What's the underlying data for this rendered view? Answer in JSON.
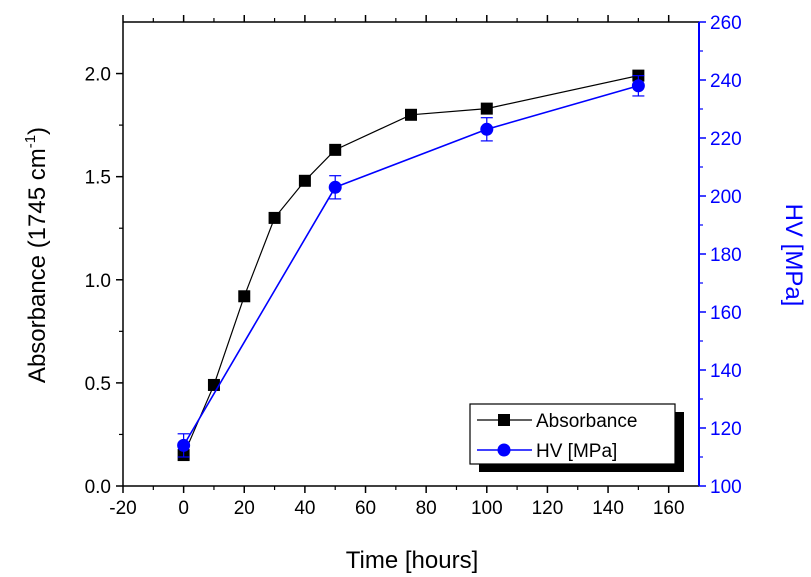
{
  "chart_data": {
    "type": "line",
    "title": "",
    "xlabel": "Time [hours]",
    "ylabel": "Absorbance (1745 cm",
    "ylabel_sup": "-1",
    "ylabel_close": ")",
    "y2label": "HV [MPa]",
    "xlim": [
      -20,
      170
    ],
    "ylim": [
      0,
      2.25
    ],
    "y2lim": [
      100,
      260
    ],
    "xticks": [
      -20,
      0,
      20,
      40,
      60,
      80,
      100,
      120,
      140,
      160
    ],
    "xtick_labels": [
      "-20",
      "0",
      "20",
      "40",
      "60",
      "80",
      "100",
      "120",
      "140",
      "160"
    ],
    "yticks": [
      0,
      0.5,
      1.0,
      1.5,
      2.0
    ],
    "ytick_labels": [
      "0.0",
      "0.5",
      "1.0",
      "1.5",
      "2.0"
    ],
    "y2ticks": [
      100,
      120,
      140,
      160,
      180,
      200,
      220,
      240,
      260
    ],
    "y2tick_labels": [
      "100",
      "120",
      "140",
      "160",
      "180",
      "200",
      "220",
      "240",
      "260"
    ],
    "grid": false,
    "legend_position": "bottom-right",
    "series": [
      {
        "name": "Absorbance",
        "axis": "left",
        "color": "#000000",
        "marker": "square",
        "x": [
          0,
          10,
          20,
          30,
          40,
          50,
          75,
          100,
          150
        ],
        "y": [
          0.15,
          0.49,
          0.92,
          1.3,
          1.48,
          1.63,
          1.8,
          1.83,
          1.99
        ]
      },
      {
        "name": "HV [MPa]",
        "axis": "right",
        "color": "#0000ff",
        "marker": "circle",
        "x": [
          0,
          50,
          100,
          150
        ],
        "y": [
          114,
          203,
          223,
          238
        ],
        "err": [
          4,
          4,
          4,
          3.5
        ]
      }
    ]
  }
}
